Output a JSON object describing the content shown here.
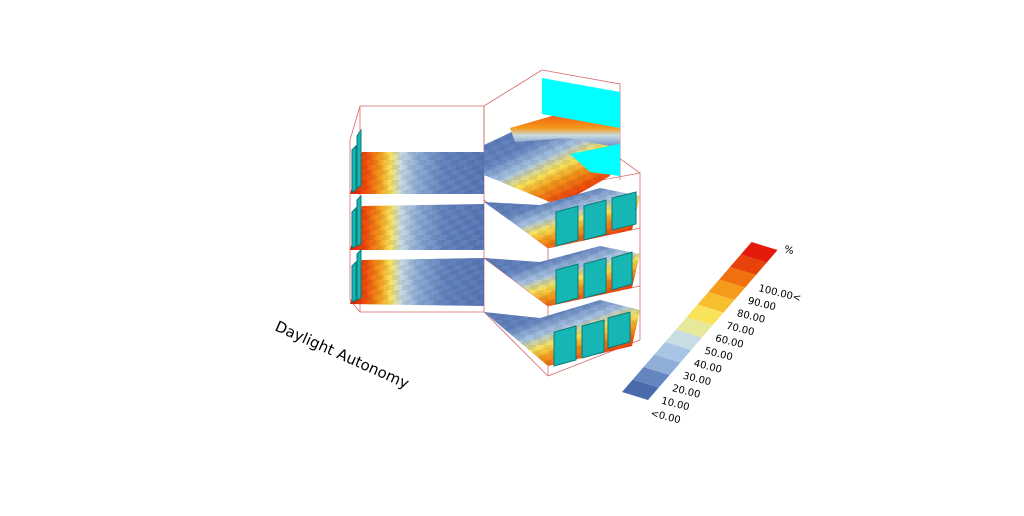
{
  "title": "Daylight Autonomy",
  "legend": {
    "unit": "%",
    "labels": [
      "<0.00",
      "10.00",
      "20.00",
      "30.00",
      "40.00",
      "50.00",
      "60.00",
      "70.00",
      "80.00",
      "90.00",
      "100.00<"
    ],
    "colors": [
      "#4a6bab",
      "#6585c0",
      "#8faed8",
      "#a9c4e4",
      "#c9dbe3",
      "#e8e89a",
      "#f9e35a",
      "#f7bf2e",
      "#f59a1b",
      "#f0700f",
      "#e8420a",
      "#e41b0a"
    ]
  },
  "colors": {
    "outline": "#d46a6a",
    "glass": "#00ffff",
    "window": "#16b6b4"
  }
}
